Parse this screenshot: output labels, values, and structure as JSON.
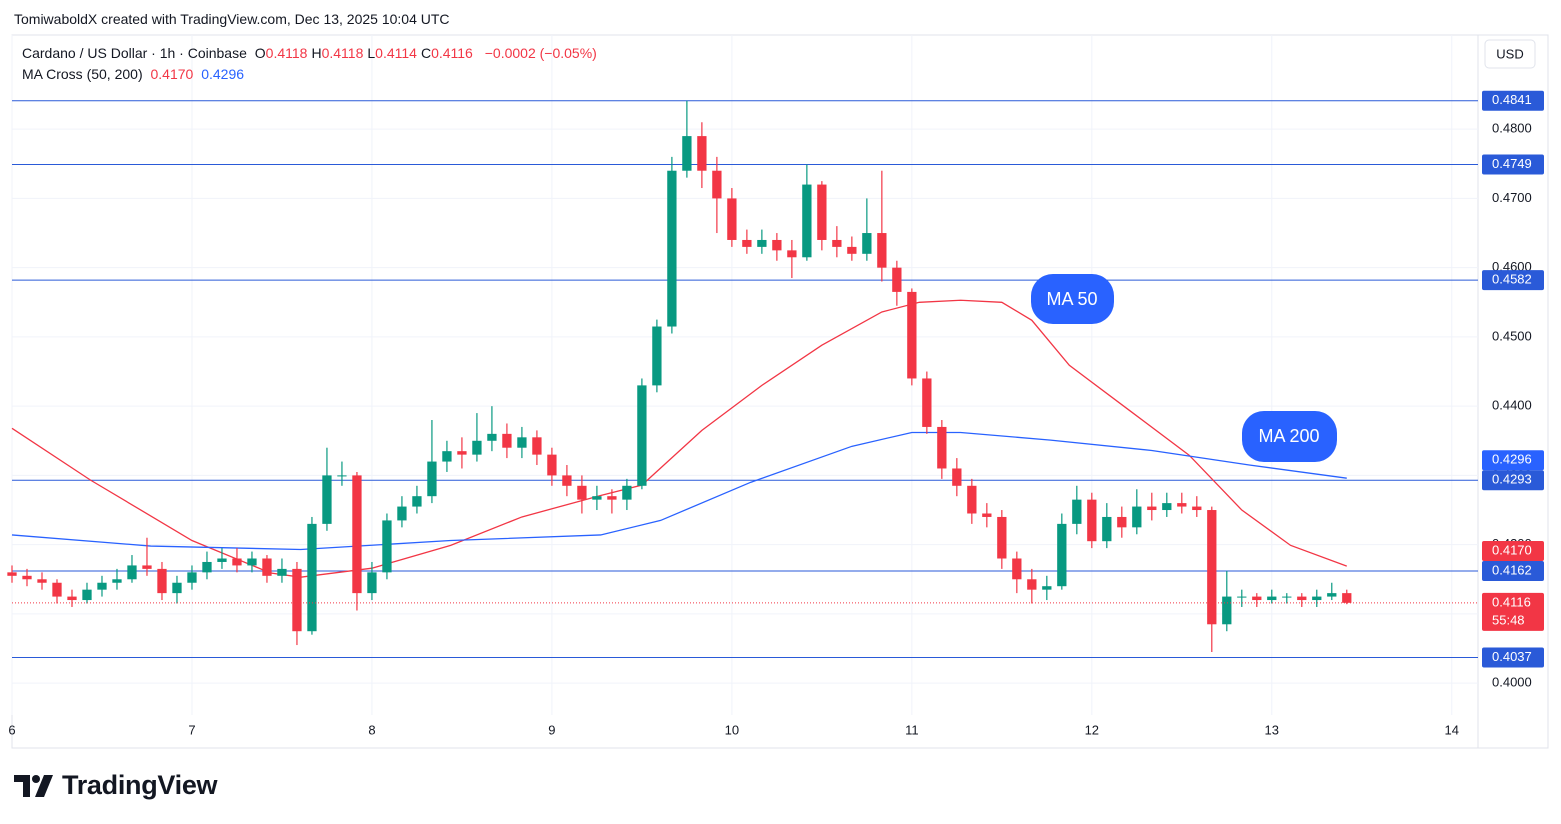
{
  "header": {
    "attribution": "TomiwaboldX created with TradingView.com, Dec 13, 2025 10:04 UTC",
    "symbol": "Cardano / US Dollar · 1h · Coinbase",
    "ohlc": [
      {
        "key": "O",
        "value": "0.4118"
      },
      {
        "key": "H",
        "value": "0.4118"
      },
      {
        "key": "L",
        "value": "0.4114"
      },
      {
        "key": "C",
        "value": "0.4116"
      }
    ],
    "change": "−0.0002 (−0.05%)",
    "indicator": "MA Cross (50, 200)",
    "currency": "USD"
  },
  "footer": {
    "brand": "TradingView"
  },
  "chart_data": {
    "type": "candlestick",
    "xlim": [
      0,
      195.5
    ],
    "xticks": [
      {
        "value": 0,
        "label": "6"
      },
      {
        "value": 24,
        "label": "7"
      },
      {
        "value": 48,
        "label": "8"
      },
      {
        "value": 72,
        "label": "9"
      },
      {
        "value": 96,
        "label": "10"
      },
      {
        "value": 120,
        "label": "11"
      },
      {
        "value": 144,
        "label": "12"
      },
      {
        "value": 168,
        "label": "13"
      },
      {
        "value": 192,
        "label": "14"
      }
    ],
    "ylim": [
      0.3954,
      0.4936
    ],
    "yticks": [
      {
        "value": 0.4,
        "label": "0.4000"
      },
      {
        "value": 0.41,
        "label": "0.4100"
      },
      {
        "value": 0.42,
        "label": "0.4200"
      },
      {
        "value": 0.43,
        "label": "0.4300"
      },
      {
        "value": 0.44,
        "label": "0.4400"
      },
      {
        "value": 0.45,
        "label": "0.4500"
      },
      {
        "value": 0.46,
        "label": "0.4600"
      },
      {
        "value": 0.47,
        "label": "0.4700"
      },
      {
        "value": 0.48,
        "label": "0.4800"
      }
    ],
    "grid": true,
    "up_color": "#089981",
    "down_color": "#f23645",
    "level_color": "#2a5ad8",
    "candles": {
      "x": [
        0,
        2,
        4,
        6,
        8,
        10,
        12,
        14,
        16,
        18,
        20,
        22,
        24,
        26,
        28,
        30,
        32,
        34,
        36,
        38,
        40,
        42,
        44,
        46,
        48,
        50,
        52,
        54,
        56,
        58,
        60,
        62,
        64,
        66,
        68,
        70,
        72,
        74,
        76,
        78,
        80,
        82,
        84,
        86,
        88,
        90,
        92,
        94,
        96,
        98,
        100,
        102,
        104,
        106,
        108,
        110,
        112,
        114,
        116,
        118,
        120,
        122,
        124,
        126,
        128,
        130,
        132,
        134,
        136,
        138,
        140,
        142,
        144,
        146,
        148,
        150,
        152,
        154,
        156,
        158,
        160,
        162,
        164,
        166,
        168,
        170,
        172,
        174,
        176,
        178
      ],
      "open": [
        0.416,
        0.4155,
        0.415,
        0.4145,
        0.4125,
        0.412,
        0.4135,
        0.4145,
        0.415,
        0.417,
        0.4165,
        0.413,
        0.4145,
        0.416,
        0.4175,
        0.418,
        0.417,
        0.418,
        0.4155,
        0.4165,
        0.4075,
        0.423,
        0.43,
        0.43,
        0.413,
        0.416,
        0.4235,
        0.4255,
        0.427,
        0.432,
        0.4335,
        0.433,
        0.435,
        0.436,
        0.434,
        0.4355,
        0.433,
        0.43,
        0.4285,
        0.4265,
        0.427,
        0.4265,
        0.4285,
        0.443,
        0.4515,
        0.474,
        0.479,
        0.474,
        0.47,
        0.464,
        0.463,
        0.464,
        0.4625,
        0.4615,
        0.472,
        0.464,
        0.463,
        0.462,
        0.465,
        0.46,
        0.4565,
        0.444,
        0.437,
        0.431,
        0.4285,
        0.4245,
        0.424,
        0.418,
        0.415,
        0.4135,
        0.414,
        0.423,
        0.4265,
        0.4205,
        0.424,
        0.4225,
        0.4255,
        0.425,
        0.426,
        0.4255,
        0.425,
        0.4085,
        0.4125,
        0.4125,
        0.412,
        0.4125,
        0.4125,
        0.412,
        0.4125,
        0.413
      ],
      "high": [
        0.417,
        0.4165,
        0.416,
        0.415,
        0.4135,
        0.4145,
        0.4155,
        0.4165,
        0.4185,
        0.421,
        0.4175,
        0.4155,
        0.417,
        0.419,
        0.4195,
        0.4195,
        0.419,
        0.4185,
        0.418,
        0.4175,
        0.424,
        0.434,
        0.432,
        0.4305,
        0.4175,
        0.4245,
        0.427,
        0.4285,
        0.438,
        0.435,
        0.4355,
        0.439,
        0.44,
        0.4375,
        0.437,
        0.4365,
        0.434,
        0.4315,
        0.43,
        0.4285,
        0.428,
        0.4295,
        0.444,
        0.4525,
        0.476,
        0.4841,
        0.481,
        0.476,
        0.4715,
        0.4655,
        0.4655,
        0.465,
        0.464,
        0.4749,
        0.4725,
        0.466,
        0.4645,
        0.47,
        0.474,
        0.461,
        0.457,
        0.445,
        0.438,
        0.4325,
        0.4295,
        0.426,
        0.425,
        0.419,
        0.4165,
        0.4155,
        0.4245,
        0.4285,
        0.4275,
        0.426,
        0.4255,
        0.428,
        0.4275,
        0.4275,
        0.4275,
        0.427,
        0.4255,
        0.4162,
        0.4135,
        0.413,
        0.4135,
        0.413,
        0.413,
        0.4135,
        0.4145,
        0.4135
      ],
      "low": [
        0.4145,
        0.414,
        0.4135,
        0.4115,
        0.411,
        0.4115,
        0.4125,
        0.4135,
        0.4145,
        0.4155,
        0.412,
        0.4115,
        0.4135,
        0.415,
        0.4165,
        0.416,
        0.416,
        0.4145,
        0.4145,
        0.4055,
        0.407,
        0.422,
        0.4285,
        0.4105,
        0.412,
        0.415,
        0.4225,
        0.4245,
        0.426,
        0.4305,
        0.431,
        0.432,
        0.4335,
        0.4325,
        0.4325,
        0.4315,
        0.4285,
        0.427,
        0.4245,
        0.425,
        0.4245,
        0.425,
        0.428,
        0.442,
        0.4505,
        0.473,
        0.4715,
        0.465,
        0.463,
        0.462,
        0.462,
        0.461,
        0.4585,
        0.461,
        0.4625,
        0.4615,
        0.461,
        0.461,
        0.458,
        0.4545,
        0.443,
        0.436,
        0.4295,
        0.427,
        0.423,
        0.4225,
        0.4165,
        0.413,
        0.4115,
        0.412,
        0.4135,
        0.4215,
        0.4195,
        0.4195,
        0.421,
        0.4215,
        0.4235,
        0.424,
        0.4245,
        0.424,
        0.4045,
        0.4075,
        0.411,
        0.411,
        0.4115,
        0.4115,
        0.411,
        0.411,
        0.412,
        0.4114
      ],
      "close": [
        0.4155,
        0.415,
        0.4145,
        0.4125,
        0.412,
        0.4135,
        0.4145,
        0.415,
        0.417,
        0.4165,
        0.413,
        0.4145,
        0.416,
        0.4175,
        0.418,
        0.417,
        0.418,
        0.4155,
        0.4165,
        0.4075,
        0.423,
        0.43,
        0.43,
        0.413,
        0.416,
        0.4235,
        0.4255,
        0.427,
        0.432,
        0.4335,
        0.433,
        0.435,
        0.436,
        0.434,
        0.4355,
        0.433,
        0.43,
        0.4285,
        0.4265,
        0.427,
        0.4265,
        0.4285,
        0.443,
        0.4515,
        0.474,
        0.479,
        0.474,
        0.47,
        0.464,
        0.463,
        0.464,
        0.4625,
        0.4615,
        0.472,
        0.464,
        0.463,
        0.462,
        0.465,
        0.46,
        0.4565,
        0.444,
        0.437,
        0.431,
        0.4285,
        0.4245,
        0.424,
        0.418,
        0.415,
        0.4135,
        0.414,
        0.423,
        0.4265,
        0.4205,
        0.424,
        0.4225,
        0.4255,
        0.425,
        0.426,
        0.4255,
        0.425,
        0.4085,
        0.4125,
        0.4125,
        0.412,
        0.4125,
        0.4125,
        0.412,
        0.4125,
        0.413,
        0.4116
      ]
    },
    "last_price": 0.4116,
    "countdown": "55:48",
    "series": [
      {
        "name": "MA 50",
        "color": "#f23645",
        "x": [
          0,
          10.5,
          24,
          34.5,
          38.5,
          48,
          58.5,
          68,
          78.5,
          84,
          92,
          100,
          108,
          116,
          121,
          126.5,
          132,
          136,
          141,
          149,
          157,
          164,
          170.5,
          178
        ],
        "values": [
          0.4368,
          0.4293,
          0.4206,
          0.4159,
          0.4153,
          0.4166,
          0.4199,
          0.424,
          0.4271,
          0.4286,
          0.4365,
          0.443,
          0.4488,
          0.4536,
          0.455,
          0.4553,
          0.455,
          0.4524,
          0.4459,
          0.4394,
          0.4329,
          0.425,
          0.4199,
          0.4169
        ],
        "price_tag": {
          "value": 0.417,
          "label": "0.4170"
        }
      },
      {
        "name": "MA 200",
        "color": "#2962ff",
        "x": [
          0,
          18.5,
          38.5,
          58.5,
          78.5,
          86.5,
          98.5,
          112,
          120,
          126.5,
          138.5,
          152,
          165,
          178
        ],
        "values": [
          0.4214,
          0.4198,
          0.4193,
          0.4206,
          0.4214,
          0.4235,
          0.429,
          0.4342,
          0.4362,
          0.4362,
          0.4351,
          0.4336,
          0.4315,
          0.4296
        ],
        "price_tag": {
          "value": 0.4296,
          "label": "0.4296"
        }
      }
    ],
    "levels": [
      0.4841,
      0.4749,
      0.4582,
      0.4293,
      0.4162,
      0.4037
    ]
  }
}
